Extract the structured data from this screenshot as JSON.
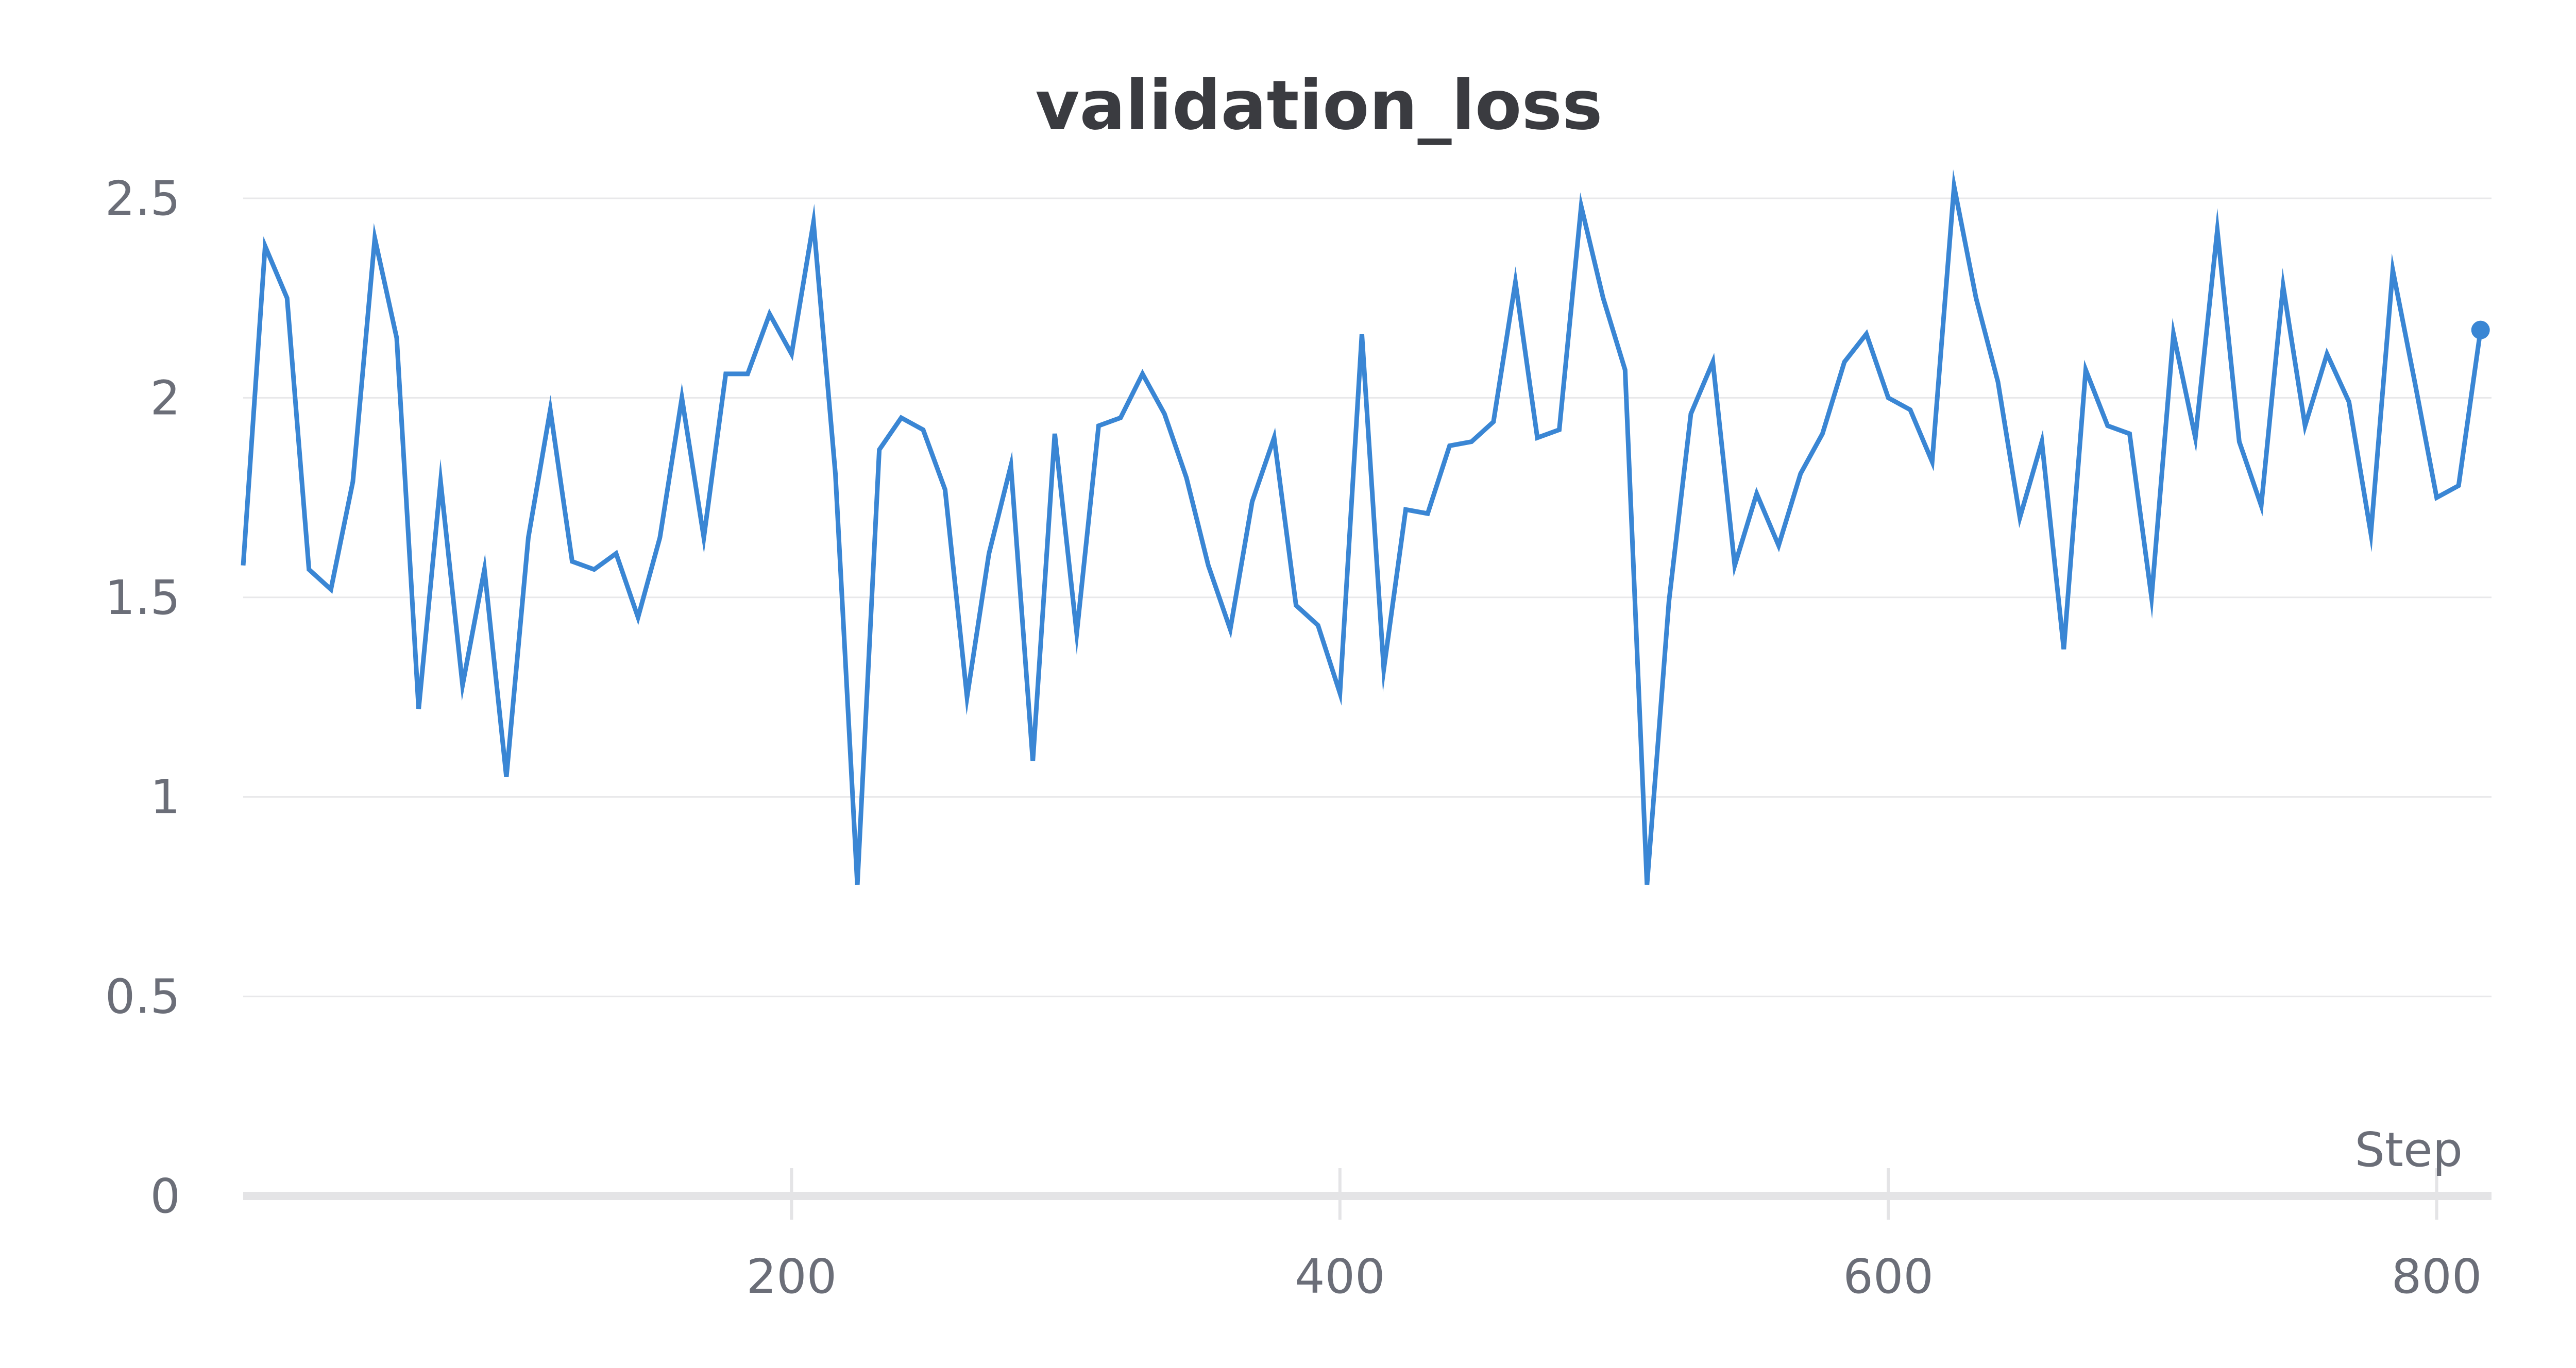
{
  "chart_data": {
    "type": "line",
    "title": "validation_loss",
    "xlabel": "Step",
    "ylabel": "",
    "xlim": [
      0,
      820
    ],
    "ylim": [
      0,
      2.5
    ],
    "x_ticks": [
      200,
      400,
      600,
      800
    ],
    "x_tick_labels": [
      "200",
      "400",
      "600",
      "800"
    ],
    "y_ticks": [
      0,
      0.5,
      1,
      1.5,
      2,
      2.5
    ],
    "y_tick_labels": [
      "0",
      "0.5",
      "1",
      "1.5",
      "2",
      "2.5"
    ],
    "grid": true,
    "legend": "none",
    "colors": {
      "line": "#3a86d4",
      "grid": "#e8e8ea",
      "axis": "#e4e4e6",
      "text": "#6b6e78",
      "title": "#3a3b40"
    },
    "series": [
      {
        "x": [
          0,
          8,
          16,
          24,
          32,
          40,
          48,
          56,
          64,
          72,
          80,
          88,
          96,
          104,
          112,
          120,
          128,
          136,
          144,
          152,
          160,
          168,
          176,
          184,
          192,
          200,
          208,
          216,
          224,
          232,
          240,
          248,
          256,
          264,
          272,
          280,
          288,
          296,
          304,
          312,
          320,
          328,
          336,
          344,
          352,
          360,
          368,
          376,
          384,
          392,
          400,
          408,
          416,
          424,
          432,
          440,
          448,
          456,
          464,
          472,
          480,
          488,
          496,
          504,
          512,
          520,
          528,
          536,
          544,
          552,
          560,
          568,
          576,
          584,
          592,
          600,
          608,
          616,
          624,
          632,
          640,
          648,
          656,
          664,
          672,
          680,
          688,
          696,
          704,
          712,
          720,
          728,
          736,
          744,
          752,
          760,
          768,
          776,
          784,
          792,
          800,
          808,
          816
        ],
        "values": [
          1.58,
          2.38,
          2.25,
          1.57,
          1.52,
          1.79,
          2.4,
          2.15,
          1.22,
          1.79,
          1.28,
          1.57,
          1.05,
          1.65,
          1.97,
          1.59,
          1.57,
          1.61,
          1.45,
          1.65,
          2.0,
          1.65,
          2.06,
          2.06,
          2.21,
          2.11,
          2.44,
          1.81,
          0.78,
          1.87,
          1.95,
          1.92,
          1.77,
          1.25,
          1.61,
          1.83,
          1.09,
          1.91,
          1.41,
          1.93,
          1.95,
          2.06,
          1.96,
          1.8,
          1.58,
          1.42,
          1.74,
          1.9,
          1.48,
          1.43,
          1.26,
          2.16,
          1.32,
          1.72,
          1.71,
          1.88,
          1.89,
          1.94,
          2.29,
          1.9,
          1.92,
          2.48,
          2.25,
          2.07,
          0.78,
          1.49,
          1.96,
          2.09,
          1.58,
          1.76,
          1.63,
          1.81,
          1.91,
          2.09,
          2.16,
          2.0,
          1.97,
          1.84,
          2.53,
          2.25,
          2.04,
          1.7,
          1.89,
          1.37,
          2.07,
          1.93,
          1.91,
          1.5,
          2.16,
          1.9,
          2.42,
          1.89,
          1.73,
          2.28,
          1.93,
          2.11,
          1.99,
          1.66,
          2.32,
          2.04,
          1.75,
          1.78,
          2.17
        ]
      }
    ]
  }
}
